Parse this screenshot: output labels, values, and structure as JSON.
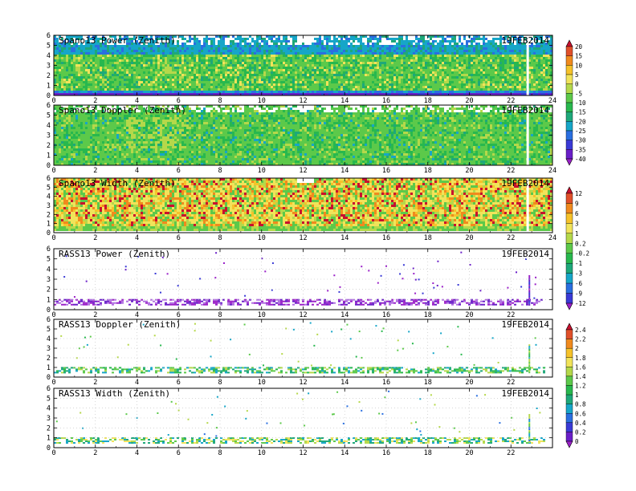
{
  "chart_data": [
    {
      "type": "heatmap",
      "title": "Spano13 Power (Zenith)",
      "date": "19FEB2014",
      "xlim": [
        0,
        24
      ],
      "ylim": [
        0,
        6
      ],
      "xticks": [
        "0",
        "2",
        "4",
        "6",
        "8",
        "10",
        "12",
        "14",
        "16",
        "18",
        "20",
        "22",
        "24"
      ],
      "yticks": [
        "0",
        "1",
        "2",
        "3",
        "4",
        "5",
        "6"
      ],
      "colorbar_group": "A"
    },
    {
      "type": "heatmap",
      "title": "Spano13 Doppler (Zenith)",
      "date": "19FEB2014",
      "xlim": [
        0,
        24
      ],
      "ylim": [
        0,
        6
      ],
      "xticks": [
        "0",
        "2",
        "4",
        "6",
        "8",
        "10",
        "12",
        "14",
        "16",
        "18",
        "20",
        "22",
        "24"
      ],
      "yticks": [
        "0",
        "1",
        "2",
        "3",
        "4",
        "5",
        "6"
      ],
      "colorbar_group": "A"
    },
    {
      "type": "heatmap",
      "title": "Spano13 Width (Zenith)",
      "date": "19FEB2014",
      "xlim": [
        0,
        24
      ],
      "ylim": [
        0,
        6
      ],
      "xticks": [
        "0",
        "2",
        "4",
        "6",
        "8",
        "10",
        "12",
        "14",
        "16",
        "18",
        "20",
        "22",
        "24"
      ],
      "yticks": [
        "0",
        "1",
        "2",
        "3",
        "4",
        "5",
        "6"
      ],
      "colorbar_group": "B"
    },
    {
      "type": "heatmap",
      "title": "RASS13 Power (Zenith)",
      "date": "19FEB2014",
      "xlim": [
        0,
        24
      ],
      "ylim": [
        0,
        6
      ],
      "xticks": [
        "0",
        "2",
        "4",
        "6",
        "8",
        "10",
        "12",
        "14",
        "16",
        "18",
        "20",
        "22"
      ],
      "yticks": [
        "0",
        "1",
        "2",
        "3",
        "4",
        "5",
        "6"
      ],
      "colorbar_group": "B"
    },
    {
      "type": "heatmap",
      "title": "RASS13 Doppler (Zenith)",
      "date": "19FEB2014",
      "xlim": [
        0,
        24
      ],
      "ylim": [
        0,
        6
      ],
      "xticks": [
        "0",
        "2",
        "4",
        "6",
        "8",
        "10",
        "12",
        "14",
        "16",
        "18",
        "20",
        "22"
      ],
      "yticks": [
        "0",
        "1",
        "2",
        "3",
        "4",
        "5",
        "6"
      ],
      "colorbar_group": "C"
    },
    {
      "type": "heatmap",
      "title": "RASS13 Width (Zenith)",
      "date": "19FEB2014",
      "xlim": [
        0,
        24
      ],
      "ylim": [
        0,
        6
      ],
      "xticks": [
        "0",
        "2",
        "4",
        "6",
        "8",
        "10",
        "12",
        "14",
        "16",
        "18",
        "20",
        "22"
      ],
      "yticks": [
        "0",
        "1",
        "2",
        "3",
        "4",
        "5",
        "6"
      ],
      "colorbar_group": "C"
    }
  ],
  "colorbars": {
    "A": {
      "labels": [
        "20",
        "15",
        "10",
        "5",
        "0",
        "-5",
        "-10",
        "-15",
        "-20",
        "-25",
        "-30",
        "-35",
        "-40"
      ],
      "colors": [
        "#c8102e",
        "#e0502a",
        "#f08a1e",
        "#f6c22a",
        "#f1e35a",
        "#b5d84a",
        "#5cc94a",
        "#28b84e",
        "#1ea87a",
        "#16a6c8",
        "#2a6fe0",
        "#3a3ad6",
        "#6a1fc8",
        "#9a20c8"
      ]
    },
    "B": {
      "labels": [
        "12",
        "9",
        "6",
        "3",
        "1",
        "0.2",
        "-0.2",
        "-1",
        "-3",
        "-6",
        "-9",
        "-12"
      ],
      "colors": [
        "#c8102e",
        "#e0502a",
        "#f08a1e",
        "#f6c22a",
        "#f1e35a",
        "#b5d84a",
        "#5cc94a",
        "#28b84e",
        "#1ea87a",
        "#16a6c8",
        "#2a6fe0",
        "#3a3ad6",
        "#9a20c8"
      ]
    },
    "C": {
      "labels": [
        "2.4",
        "2.2",
        "2",
        "1.8",
        "1.6",
        "1.4",
        "1.2",
        "1",
        "0.8",
        "0.6",
        "0.4",
        "0.2",
        "0"
      ],
      "colors": [
        "#c8102e",
        "#e0502a",
        "#f08a1e",
        "#f6c22a",
        "#f1e35a",
        "#b5d84a",
        "#5cc94a",
        "#28b84e",
        "#1ea87a",
        "#16a6c8",
        "#2a6fe0",
        "#3a3ad6",
        "#6a1fc8",
        "#9a20c8"
      ]
    }
  }
}
